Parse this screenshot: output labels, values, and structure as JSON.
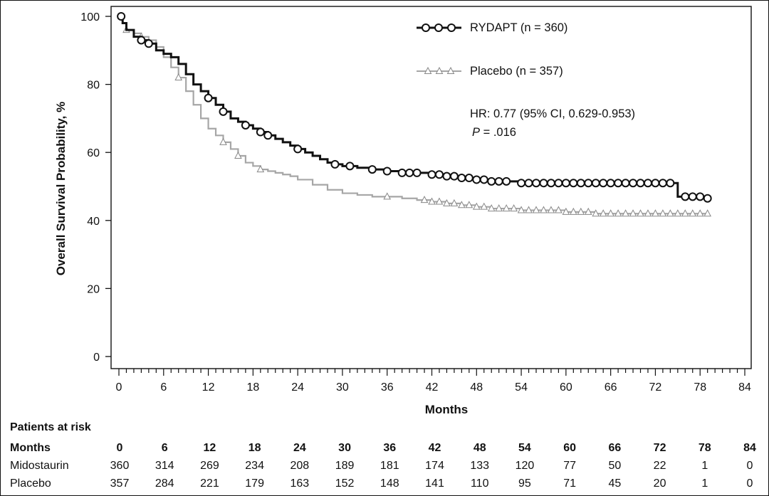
{
  "chart_data": {
    "type": "line",
    "title": "",
    "xlabel": "Months",
    "ylabel": "Overall Survival Probability, %",
    "xlim": [
      0,
      84
    ],
    "ylim": [
      0,
      100
    ],
    "x_ticks": [
      "0",
      "6",
      "12",
      "18",
      "24",
      "30",
      "36",
      "42",
      "48",
      "54",
      "60",
      "66",
      "72",
      "78",
      "84"
    ],
    "y_ticks": [
      "0",
      "20",
      "40",
      "60",
      "80",
      "100"
    ],
    "grid": false,
    "legend_position": "top-right",
    "series": [
      {
        "name": "RYDAPT (n = 360)",
        "color": "#111111",
        "marker": "circle",
        "x": [
          0,
          0.5,
          1,
          2,
          3,
          4,
          5,
          6,
          7,
          8,
          9,
          10,
          11,
          12,
          13,
          14,
          15,
          16,
          17,
          18,
          19,
          20,
          21,
          22,
          23,
          24,
          25,
          26,
          27,
          28,
          29,
          30,
          32,
          34,
          36,
          38,
          40,
          42,
          44,
          46,
          48,
          50,
          52,
          54,
          56,
          58,
          60,
          62,
          64,
          66,
          68,
          70,
          72,
          74,
          74.8,
          75,
          76,
          78,
          79
        ],
        "y": [
          100,
          98,
          96,
          94,
          93,
          92,
          90,
          89,
          88,
          86,
          83,
          80,
          78,
          76,
          74,
          72,
          70,
          69,
          68,
          67,
          66,
          65,
          64,
          63,
          62,
          61,
          60,
          59,
          58,
          57,
          56.5,
          56,
          55.5,
          55,
          54.5,
          54,
          54,
          53.5,
          53,
          52.5,
          52,
          51.5,
          51.5,
          51,
          51,
          51,
          51,
          51,
          51,
          51,
          51,
          51,
          51,
          51,
          51,
          47,
          47,
          47,
          46.5
        ],
        "censor_x": [
          0.3,
          3,
          4,
          12,
          14,
          17,
          19,
          20,
          24,
          29,
          31,
          34,
          36,
          38,
          39,
          40,
          42,
          43,
          44,
          45,
          46,
          47,
          48,
          49,
          50,
          51,
          52,
          54,
          55,
          56,
          57,
          58,
          59,
          60,
          61,
          62,
          63,
          64,
          65,
          66,
          67,
          68,
          69,
          70,
          71,
          72,
          73,
          74,
          76,
          77,
          78,
          79
        ]
      },
      {
        "name": "Placebo (n = 357)",
        "color": "#a6a6a6",
        "marker": "triangle",
        "x": [
          0,
          0.5,
          1,
          2,
          3,
          4,
          5,
          6,
          7,
          8,
          9,
          10,
          11,
          12,
          13,
          14,
          15,
          16,
          17,
          18,
          19,
          20,
          21,
          22,
          23,
          24,
          26,
          28,
          30,
          32,
          34,
          36,
          38,
          40,
          42,
          44,
          46,
          48,
          50,
          52,
          54,
          56,
          58,
          60,
          62,
          64,
          66,
          68,
          70,
          72,
          74,
          76,
          78,
          79
        ],
        "y": [
          100,
          98,
          96,
          95,
          94,
          93,
          91,
          88,
          85,
          82,
          78,
          74,
          70,
          67,
          65,
          63,
          61,
          59,
          57,
          56,
          55,
          54.5,
          54,
          53.5,
          53,
          52,
          50.5,
          49,
          48,
          47.5,
          47,
          47,
          46.5,
          46,
          45.5,
          45,
          44.5,
          44,
          43.5,
          43.5,
          43,
          43,
          43,
          42.5,
          42.5,
          42,
          42,
          42,
          42,
          42,
          42,
          42,
          42,
          42
        ],
        "censor_x": [
          1,
          3,
          8,
          14,
          16,
          19,
          36,
          41,
          42,
          43,
          44,
          45,
          46,
          47,
          48,
          49,
          50,
          51,
          52,
          53,
          54,
          55,
          56,
          57,
          58,
          59,
          60,
          61,
          62,
          63,
          64,
          65,
          66,
          67,
          68,
          69,
          70,
          71,
          72,
          73,
          74,
          75,
          76,
          77,
          78,
          79
        ]
      }
    ],
    "annotations": {
      "hr_text": "HR: 0.77 (95% CI, 0.629-0.953)",
      "p_label": "P",
      "p_value": " = .016"
    },
    "risk_table": {
      "title": "Patients at risk",
      "header_label": "Months",
      "times": [
        "0",
        "6",
        "12",
        "18",
        "24",
        "30",
        "36",
        "42",
        "48",
        "54",
        "60",
        "66",
        "72",
        "78",
        "84"
      ],
      "rows": [
        {
          "label": "Midostaurin",
          "values": [
            "360",
            "314",
            "269",
            "234",
            "208",
            "189",
            "181",
            "174",
            "133",
            "120",
            "77",
            "50",
            "22",
            "1",
            "0"
          ]
        },
        {
          "label": "Placebo",
          "values": [
            "357",
            "284",
            "221",
            "179",
            "163",
            "152",
            "148",
            "141",
            "110",
            "95",
            "71",
            "45",
            "20",
            "1",
            "0"
          ]
        }
      ]
    }
  }
}
